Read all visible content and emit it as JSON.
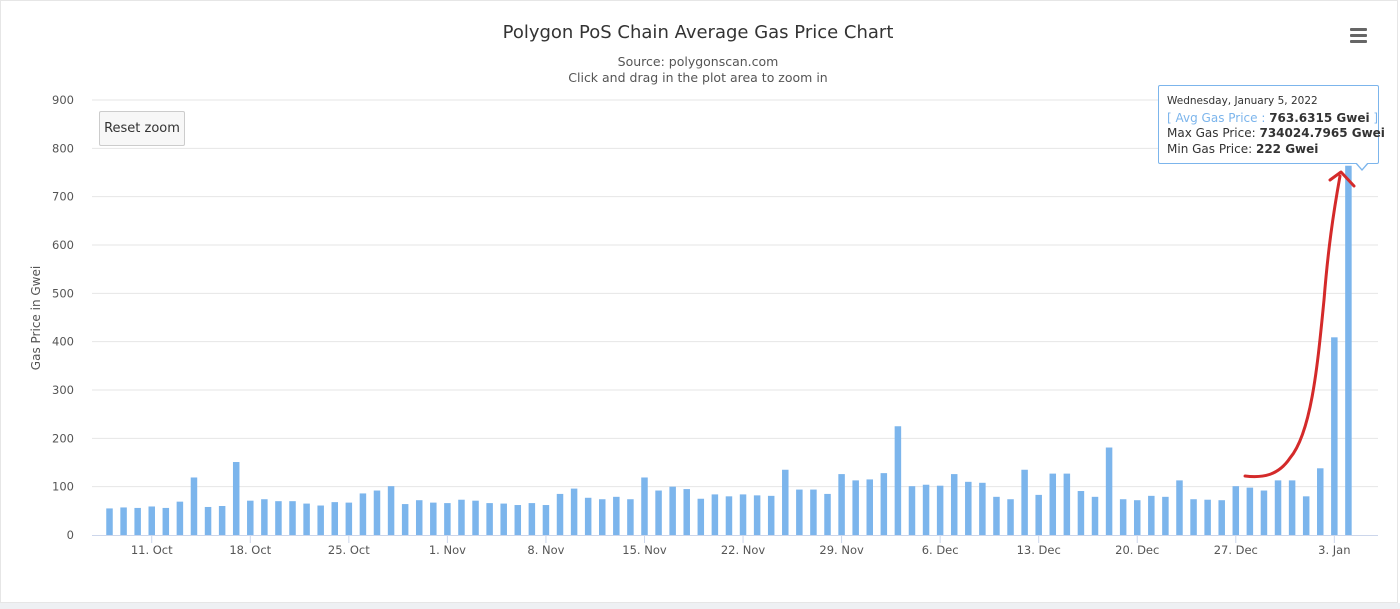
{
  "title": "Polygon PoS Chain Average Gas Price Chart",
  "subtitle_source": "Source: polygonscan.com",
  "subtitle_hint": "Click and drag in the plot area to zoom in",
  "reset_zoom_label": "Reset zoom",
  "menu_icon": "hamburger-menu-icon",
  "colors": {
    "bar": "#7cb5ec",
    "bar_highlight": "#a9cdf2",
    "annotation": "#d42a2a",
    "grid": "#e6e6e6"
  },
  "tooltip": {
    "date": "Wednesday, January 5, 2022",
    "series_open": "[ ",
    "series_name": "Avg Gas Price",
    "series_sep": " : ",
    "series_value": "763.6315 Gwei",
    "series_close": " ]",
    "max_label": "Max Gas Price: ",
    "max_value": "734024.7965 Gwei",
    "min_label": "Min Gas Price: ",
    "min_value": "222 Gwei"
  },
  "chart_data": {
    "type": "bar",
    "title": "Polygon PoS Chain Average Gas Price Chart",
    "ylabel": "Gas Price in Gwei",
    "ylim": [
      0,
      900
    ],
    "yticks": [
      0,
      100,
      200,
      300,
      400,
      500,
      600,
      700,
      800,
      900
    ],
    "x_start": "2021-10-08",
    "x_end": "2022-01-05",
    "xtick_labels": [
      {
        "date": "2021-10-11",
        "label": "11. Oct"
      },
      {
        "date": "2021-10-18",
        "label": "18. Oct"
      },
      {
        "date": "2021-10-25",
        "label": "25. Oct"
      },
      {
        "date": "2021-11-01",
        "label": "1. Nov"
      },
      {
        "date": "2021-11-08",
        "label": "8. Nov"
      },
      {
        "date": "2021-11-15",
        "label": "15. Nov"
      },
      {
        "date": "2021-11-22",
        "label": "22. Nov"
      },
      {
        "date": "2021-11-29",
        "label": "29. Nov"
      },
      {
        "date": "2021-12-06",
        "label": "6. Dec"
      },
      {
        "date": "2021-12-13",
        "label": "13. Dec"
      },
      {
        "date": "2021-12-20",
        "label": "20. Dec"
      },
      {
        "date": "2021-12-27",
        "label": "27. Dec"
      },
      {
        "date": "2022-01-03",
        "label": "3. Jan"
      }
    ],
    "series": [
      {
        "name": "Avg Gas Price",
        "values": [
          55,
          57,
          56,
          59,
          56,
          69,
          119,
          58,
          60,
          151,
          71,
          74,
          70,
          70,
          65,
          61,
          68,
          67,
          86,
          92,
          101,
          64,
          72,
          67,
          66,
          73,
          71,
          66,
          65,
          62,
          66,
          62,
          85,
          96,
          77,
          74,
          79,
          74,
          119,
          92,
          100,
          95,
          75,
          84,
          80,
          84,
          82,
          81,
          135,
          94,
          94,
          85,
          126,
          113,
          115,
          128,
          225,
          101,
          104,
          102,
          126,
          110,
          108,
          79,
          74,
          135,
          83,
          127,
          127,
          91,
          79,
          181,
          74,
          72,
          81,
          79,
          113,
          74,
          73,
          72,
          101,
          98,
          92,
          113,
          113,
          80,
          138,
          409,
          764
        ]
      }
    ],
    "highlighted_point": "2022-01-05"
  }
}
